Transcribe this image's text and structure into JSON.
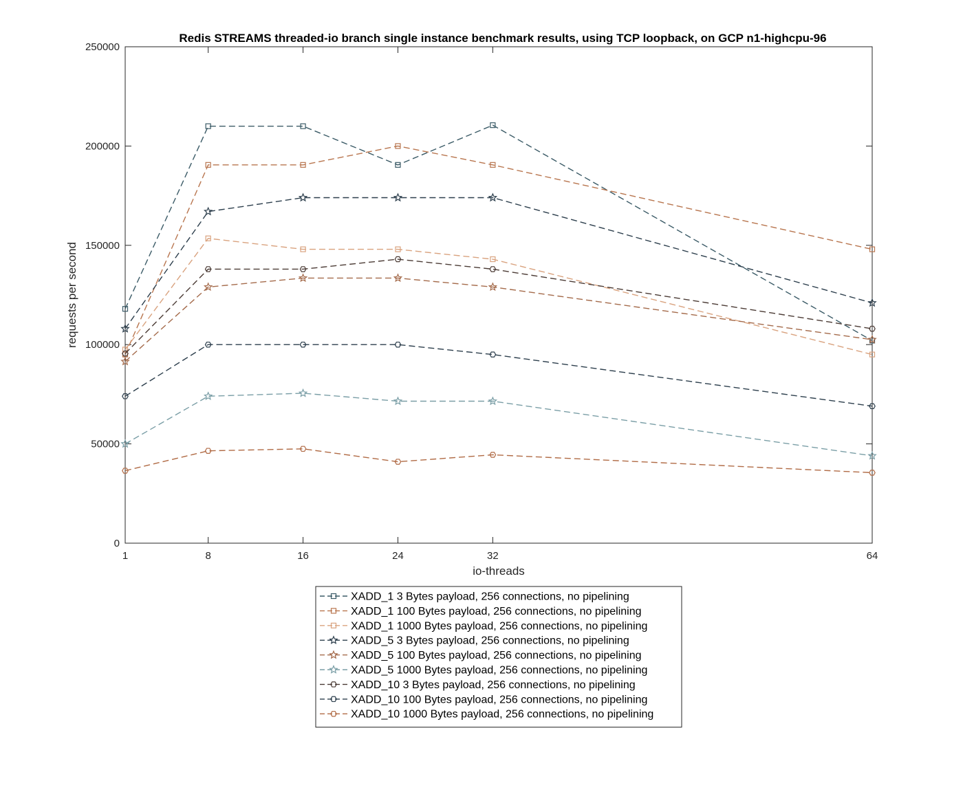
{
  "chart_data": {
    "type": "line",
    "title": "Redis STREAMS threaded-io branch single instance benchmark results, using TCP loopback, on GCP n1-highcpu-96",
    "xlabel": "io-threads",
    "ylabel": "requests per second",
    "x": [
      1,
      8,
      16,
      24,
      32,
      64
    ],
    "x_tick_labels": [
      "1",
      "8",
      "16",
      "24",
      "32",
      "64"
    ],
    "xlim": [
      1,
      64
    ],
    "ylim": [
      0,
      250000
    ],
    "y_ticks": [
      0,
      50000,
      100000,
      150000,
      200000,
      250000
    ],
    "y_tick_labels": [
      "0",
      "50000",
      "100000",
      "150000",
      "200000",
      "250000"
    ],
    "grid": false,
    "legend_position": "bottom-center-outside",
    "series": [
      {
        "name": "XADD_1 3 Bytes payload, 256 connections, no pipelining",
        "marker": "square",
        "color": "#3a5a66",
        "values": [
          118000,
          210000,
          210000,
          190500,
          210500,
          102000
        ]
      },
      {
        "name": "XADD_1 100 Bytes payload, 256 connections, no pipelining",
        "marker": "square",
        "color": "#b8754e",
        "values": [
          95000,
          190500,
          190500,
          200000,
          190500,
          148000
        ]
      },
      {
        "name": "XADD_1 1000 Bytes payload, 256 connections, no pipelining",
        "marker": "square",
        "color": "#d9a27e",
        "values": [
          97500,
          153500,
          148000,
          148000,
          143000,
          95000
        ]
      },
      {
        "name": "XADD_5 3 Bytes payload, 256 connections, no pipelining",
        "marker": "star",
        "color": "#2c3e4c",
        "values": [
          108000,
          167000,
          174000,
          174000,
          174000,
          121000
        ]
      },
      {
        "name": "XADD_5 100 Bytes payload, 256 connections, no pipelining",
        "marker": "star",
        "color": "#a46a4a",
        "values": [
          91500,
          129000,
          133500,
          133500,
          129000,
          102500
        ]
      },
      {
        "name": "XADD_5 1000 Bytes payload, 256 connections, no pipelining",
        "marker": "star",
        "color": "#7a9ea6",
        "values": [
          50000,
          74000,
          75500,
          71500,
          71500,
          44000
        ]
      },
      {
        "name": "XADD_10 3 Bytes payload, 256 connections, no pipelining",
        "marker": "hexagon",
        "color": "#4a3a34",
        "values": [
          95500,
          138000,
          138000,
          143000,
          138000,
          108000
        ]
      },
      {
        "name": "XADD_10 100 Bytes payload, 256 connections, no pipelining",
        "marker": "hexagon",
        "color": "#2c3e4c",
        "values": [
          74000,
          100000,
          100000,
          100000,
          95000,
          69000
        ]
      },
      {
        "name": "XADD_10 1000 Bytes payload, 256 connections, no pipelining",
        "marker": "hexagon",
        "color": "#b06a44",
        "values": [
          36500,
          46500,
          47500,
          41000,
          44500,
          35500
        ]
      }
    ]
  }
}
